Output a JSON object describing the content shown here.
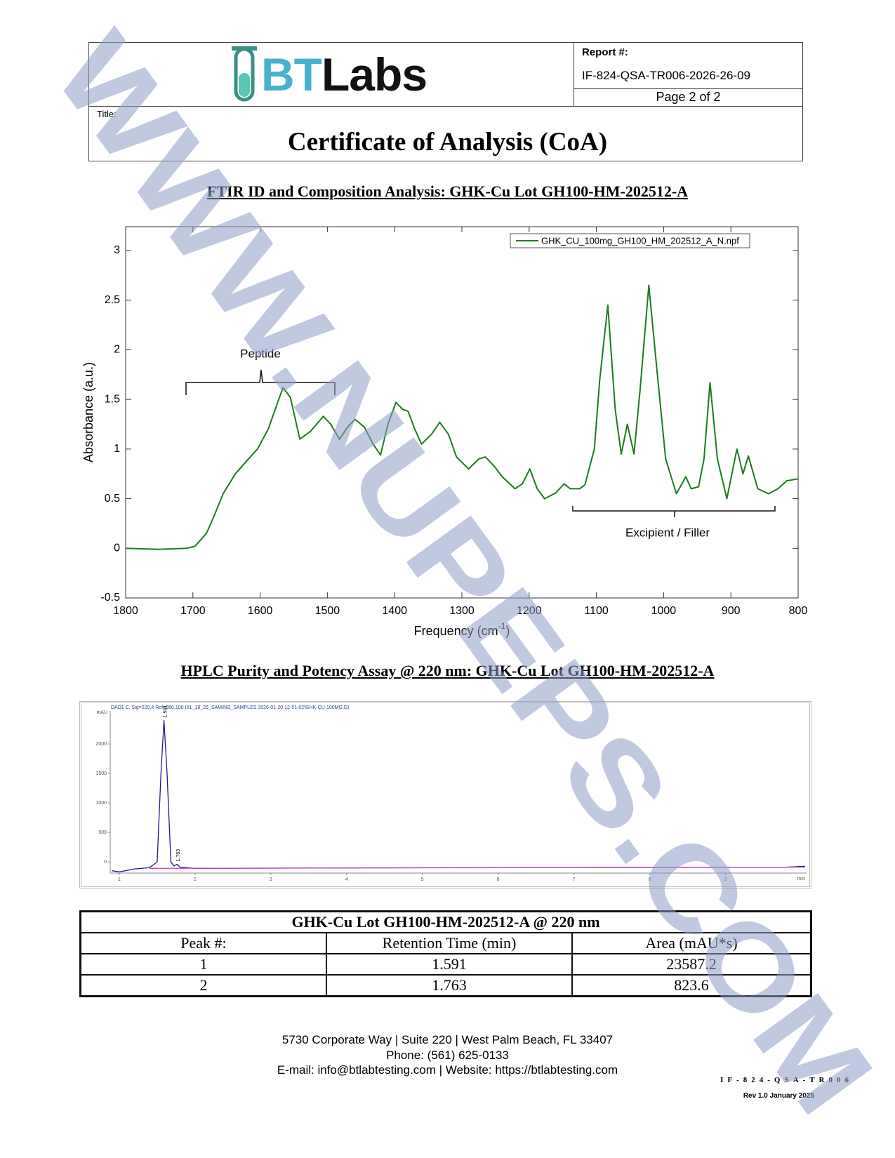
{
  "header": {
    "logo": {
      "part1": "BT",
      "part2": "Labs"
    },
    "report_label": "Report #:",
    "report_number": "IF-824-QSA-TR006-2026-26-09",
    "page": "Page 2 of 2",
    "title_label": "Title:",
    "title": "Certificate of Analysis (CoA)"
  },
  "chart_data": [
    {
      "type": "line",
      "title": "FTIR ID and Composition Analysis: GHK-Cu Lot GH100-HM-202512-A",
      "xlabel": [
        "Frequency (cm",
        "-1",
        ")"
      ],
      "ylabel": "Absorbance (a.u.)",
      "x": [
        1800,
        1750,
        1710,
        1697,
        1680,
        1670,
        1655,
        1637,
        1620,
        1604,
        1588,
        1575,
        1566,
        1555,
        1541,
        1525,
        1506,
        1495,
        1482,
        1470,
        1459,
        1445,
        1432,
        1421,
        1410,
        1398,
        1388,
        1380,
        1370,
        1360,
        1345,
        1333,
        1320,
        1308,
        1290,
        1275,
        1265,
        1251,
        1240,
        1221,
        1210,
        1199,
        1188,
        1177,
        1160,
        1148,
        1139,
        1125,
        1117,
        1103,
        1095,
        1083,
        1072,
        1063,
        1054,
        1044,
        1035,
        1022,
        1010,
        997,
        981,
        967,
        959,
        948,
        940,
        931,
        920,
        906,
        891,
        882,
        874,
        860,
        844,
        830,
        817,
        800
      ],
      "series": [
        {
          "name": "GHK_CU_100mg_GH100_HM_202512_A_N.npf",
          "color": "#1e7a1e",
          "values": [
            0,
            -0.01,
            0,
            0.02,
            0.15,
            0.3,
            0.55,
            0.75,
            0.88,
            1.0,
            1.2,
            1.45,
            1.62,
            1.52,
            1.1,
            1.18,
            1.33,
            1.25,
            1.1,
            1.22,
            1.3,
            1.22,
            1.05,
            0.94,
            1.25,
            1.47,
            1.4,
            1.38,
            1.2,
            1.05,
            1.15,
            1.27,
            1.15,
            0.92,
            0.8,
            0.9,
            0.92,
            0.82,
            0.72,
            0.6,
            0.65,
            0.8,
            0.6,
            0.5,
            0.56,
            0.65,
            0.6,
            0.6,
            0.64,
            1.0,
            1.7,
            2.45,
            1.4,
            0.95,
            1.25,
            0.95,
            1.6,
            2.65,
            1.8,
            0.9,
            0.55,
            0.72,
            0.6,
            0.62,
            0.9,
            1.67,
            0.9,
            0.5,
            1.0,
            0.75,
            0.93,
            0.6,
            0.55,
            0.6,
            0.68,
            0.7
          ]
        }
      ],
      "xlim": [
        1800,
        800
      ],
      "ylim": [
        -0.5,
        3.24
      ],
      "xticks": [
        1800,
        1700,
        1600,
        1500,
        1400,
        1300,
        1200,
        1100,
        1000,
        900,
        800
      ],
      "yticks": [
        -0.5,
        0,
        0.5,
        1,
        1.5,
        2,
        2.5,
        3
      ],
      "legend": "upper right",
      "grid": false,
      "annotations": [
        "Peptide",
        "Excipient / Filler"
      ]
    },
    {
      "type": "line",
      "title": "HPLC Purity and Potency Assay @ 220 nm: GHK-Cu Lot GH100-HM-202512-A",
      "header": "DAD1 C, Sig=220,4 Ref=360,100 (01_18_26_SAMINO_SAMPLES 2026-01-20 12-51-02\\GHK-CU-100MG.D)",
      "y_unit": "mAU",
      "x_unit": "min",
      "series": [
        {
          "color": "#1a1a8c",
          "x": [
            0.9,
            1.0,
            1.2,
            1.4,
            1.5,
            1.55,
            1.59,
            1.63,
            1.68,
            1.72,
            1.763,
            1.8,
            2.0,
            5.0,
            9.8,
            10.05
          ],
          "values": [
            -150,
            -170,
            -120,
            -100,
            0,
            1500,
            2400,
            1500,
            0,
            -70,
            -40,
            -90,
            -110,
            -100,
            -90,
            -75
          ]
        },
        {
          "color": "#d040d0",
          "x": [
            1.4,
            10.05
          ],
          "values": [
            -110,
            -90
          ]
        }
      ],
      "peaks": [
        {
          "x": 1.591,
          "y": 2400
        },
        {
          "x": 1.763,
          "y": -40
        }
      ],
      "xlim": [
        0.88,
        10.07
      ],
      "ylim": [
        -190,
        2560
      ],
      "xticks": [
        1,
        2,
        3,
        4,
        5,
        6,
        7,
        8,
        9
      ],
      "yticks": [
        0,
        500,
        1000,
        1500,
        2000
      ]
    }
  ],
  "table": {
    "title": "GHK-Cu Lot GH100-HM-202512-A @ 220 nm",
    "columns": [
      "Peak #:",
      "Retention Time (min)",
      "Area (mAU*s)"
    ],
    "rows": [
      [
        "1",
        "1.591",
        "23587.2"
      ],
      [
        "2",
        "1.763",
        "823.6"
      ]
    ]
  },
  "footer": {
    "address": "5730 Corporate Way | Suite 220 | West Palm Beach, FL 33407",
    "phone": "Phone: (561) 625-0133",
    "contact": "E-mail: info@btlabtesting.com | Website: https://btlabtesting.com",
    "code": "IF-824-QSA-TR006",
    "revision": "Rev 1.0 January 2025"
  },
  "watermark": "WWW.NUPEPS.COM"
}
